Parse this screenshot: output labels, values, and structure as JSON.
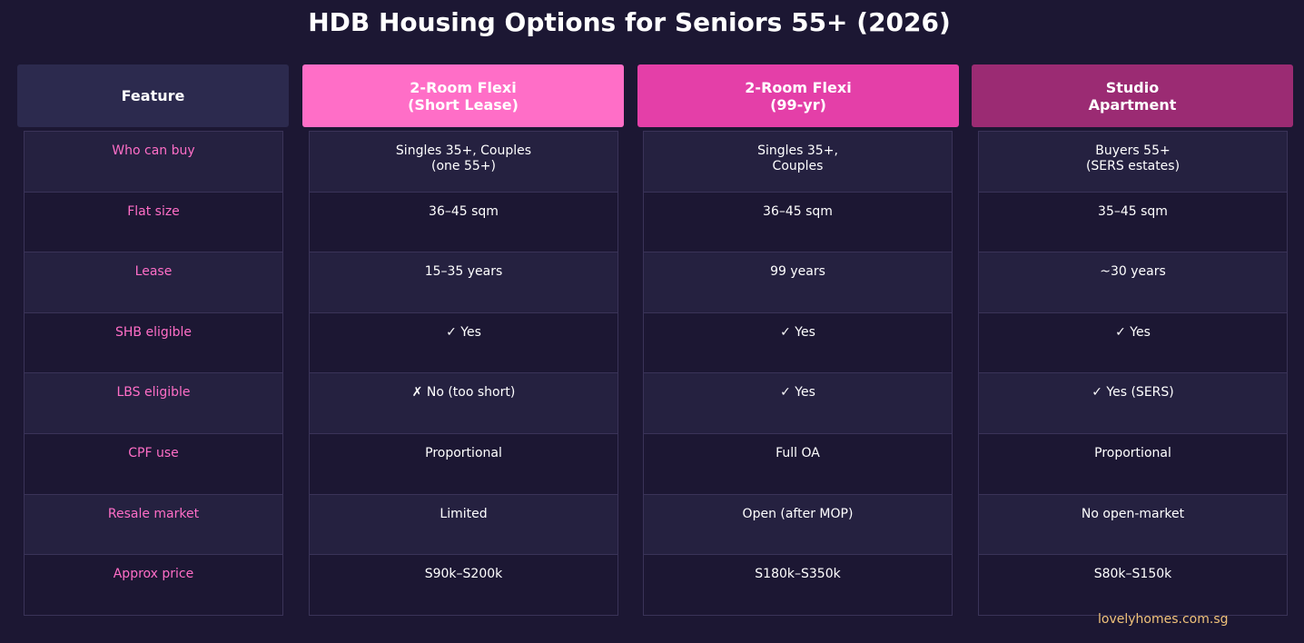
{
  "title": "HDB Housing Options for Seniors 55+ (2026)",
  "colors": {
    "background": "#1c1733",
    "feature_header": "#2c2a4e",
    "col1_header": "#ff6ec7",
    "col2_header": "#e43fa8",
    "col3_header": "#9b2b73",
    "feature_text": "#ff6ec7",
    "footer_text": "#f0c27a"
  },
  "chart_data": {
    "type": "table",
    "columns": [
      "Feature",
      "2-Room Flexi\n(Short Lease)",
      "2-Room Flexi\n(99-yr)",
      "Studio\nApartment"
    ],
    "rows": [
      [
        "Who can buy",
        "Singles 35+, Couples\n(one 55+)",
        "Singles 35+,\nCouples",
        "Buyers 55+\n(SERS estates)"
      ],
      [
        "Flat size",
        "36–45 sqm",
        "36–45 sqm",
        "35–45 sqm"
      ],
      [
        "Lease",
        "15–35 years",
        "99 years",
        "~30 years"
      ],
      [
        "SHB eligible",
        "✓ Yes",
        "✓ Yes",
        "✓ Yes"
      ],
      [
        "LBS eligible",
        "✗ No (too short)",
        "✓ Yes",
        "✓ Yes (SERS)"
      ],
      [
        "CPF use",
        "Proportional",
        "Full OA",
        "Proportional"
      ],
      [
        "Resale market",
        "Limited",
        "Open (after MOP)",
        "No open-market"
      ],
      [
        "Approx price",
        "S90k–S200k",
        "S180k–S350k",
        "S80k–S150k"
      ]
    ]
  },
  "footer": "lovelyhomes.com.sg"
}
